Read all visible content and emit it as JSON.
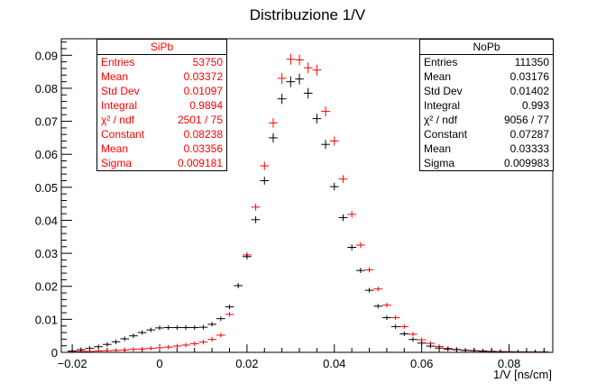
{
  "chart_data": {
    "type": "scatter",
    "title": "Distribuzione 1/V",
    "xlabel": "1/V [ns/cm]",
    "ylabel": "",
    "xlim": [
      -0.0225,
      0.09
    ],
    "ylim": [
      0,
      0.095
    ],
    "x_ticks": [
      -0.02,
      0,
      0.02,
      0.04,
      0.06,
      0.08
    ],
    "x_tick_labels": [
      "−0.02",
      "0",
      "0.02",
      "0.04",
      "0.06",
      "0.08"
    ],
    "y_ticks": [
      0,
      0.01,
      0.02,
      0.03,
      0.04,
      0.05,
      0.06,
      0.07,
      0.08,
      0.09
    ],
    "y_tick_labels": [
      "0",
      "0.01",
      "0.02",
      "0.03",
      "0.04",
      "0.05",
      "0.06",
      "0.07",
      "0.08",
      "0.09"
    ],
    "series": [
      {
        "name": "SiPb",
        "color": "#ff0000",
        "x": [
          -0.02,
          -0.018,
          -0.016,
          -0.014,
          -0.012,
          -0.01,
          -0.008,
          -0.006,
          -0.004,
          -0.002,
          0,
          0.002,
          0.004,
          0.006,
          0.008,
          0.01,
          0.012,
          0.014,
          0.016,
          0.018,
          0.02,
          0.022,
          0.024,
          0.026,
          0.028,
          0.03,
          0.032,
          0.034,
          0.036,
          0.038,
          0.04,
          0.042,
          0.044,
          0.046,
          0.048,
          0.05,
          0.052,
          0.054,
          0.056,
          0.058,
          0.06,
          0.062,
          0.064,
          0.066,
          0.068,
          0.07,
          0.072,
          0.074,
          0.076,
          0.078,
          0.08,
          0.082,
          0.084,
          0.086,
          0.088
        ],
        "y": [
          0.0002,
          0.0003,
          0.0003,
          0.0004,
          0.0005,
          0.0006,
          0.0007,
          0.0009,
          0.001,
          0.0012,
          0.0014,
          0.0016,
          0.0019,
          0.0022,
          0.0026,
          0.0031,
          0.0039,
          0.0052,
          0.0115,
          0.0202,
          0.0295,
          0.044,
          0.0565,
          0.0695,
          0.083,
          0.0888,
          0.0886,
          0.0862,
          0.0855,
          0.073,
          0.064,
          0.0525,
          0.0418,
          0.0325,
          0.025,
          0.0192,
          0.0143,
          0.0105,
          0.0078,
          0.0055,
          0.0038,
          0.0027,
          0.0018,
          0.0012,
          0.0009,
          0.0006,
          0.0005,
          0.0003,
          0.0002,
          0.0002,
          0.0001,
          0.0001,
          0.0001,
          0.0001,
          0.0001
        ]
      },
      {
        "name": "NoPb",
        "color": "#000000",
        "x": [
          -0.02,
          -0.018,
          -0.016,
          -0.014,
          -0.012,
          -0.01,
          -0.008,
          -0.006,
          -0.004,
          -0.002,
          0,
          0.002,
          0.004,
          0.006,
          0.008,
          0.01,
          0.012,
          0.014,
          0.016,
          0.018,
          0.02,
          0.022,
          0.024,
          0.026,
          0.028,
          0.03,
          0.032,
          0.034,
          0.036,
          0.038,
          0.04,
          0.042,
          0.044,
          0.046,
          0.048,
          0.05,
          0.052,
          0.054,
          0.056,
          0.058,
          0.06,
          0.062,
          0.064,
          0.066,
          0.068,
          0.07,
          0.072,
          0.074,
          0.076,
          0.078,
          0.08,
          0.082,
          0.084,
          0.086,
          0.088
        ],
        "y": [
          0.0004,
          0.0008,
          0.0012,
          0.0017,
          0.0024,
          0.0032,
          0.0041,
          0.005,
          0.006,
          0.0068,
          0.0074,
          0.0075,
          0.0075,
          0.0075,
          0.0075,
          0.0076,
          0.0085,
          0.0102,
          0.0138,
          0.0202,
          0.029,
          0.0402,
          0.052,
          0.065,
          0.0768,
          0.082,
          0.0828,
          0.0785,
          0.0708,
          0.063,
          0.0502,
          0.0408,
          0.0318,
          0.0248,
          0.0188,
          0.014,
          0.0105,
          0.0078,
          0.0056,
          0.0039,
          0.0028,
          0.0019,
          0.0013,
          0.001,
          0.0008,
          0.0006,
          0.0005,
          0.0004,
          0.0003,
          0.0002,
          0.0002,
          0.0001,
          0.0001,
          0.0001,
          0.0001
        ]
      }
    ],
    "grid": false,
    "legend": "stat boxes (top-left: SiPb, top-right: NoPb)"
  },
  "stats_boxes": {
    "sipb": {
      "title": "SiPb",
      "rows": [
        {
          "label": "Entries",
          "value": "53750"
        },
        {
          "label": "Mean",
          "value": "0.03372"
        },
        {
          "label": "Std Dev",
          "value": "0.01097"
        },
        {
          "label": "Integral",
          "value": "0.9894"
        },
        {
          "label": "χ² / ndf",
          "value": "2501 / 75"
        },
        {
          "label": "Constant",
          "value": "0.08238"
        },
        {
          "label": "Mean",
          "value": "0.03356"
        },
        {
          "label": "Sigma",
          "value": "0.009181"
        }
      ]
    },
    "nopb": {
      "title": "NoPb",
      "rows": [
        {
          "label": "Entries",
          "value": "111350"
        },
        {
          "label": "Mean",
          "value": "0.03176"
        },
        {
          "label": "Std Dev",
          "value": "0.01402"
        },
        {
          "label": "Integral",
          "value": "0.993"
        },
        {
          "label": "χ² / ndf",
          "value": "9056 / 77"
        },
        {
          "label": "Constant",
          "value": "0.07287"
        },
        {
          "label": "Mean",
          "value": "0.03333"
        },
        {
          "label": "Sigma",
          "value": "0.009983"
        }
      ]
    }
  }
}
